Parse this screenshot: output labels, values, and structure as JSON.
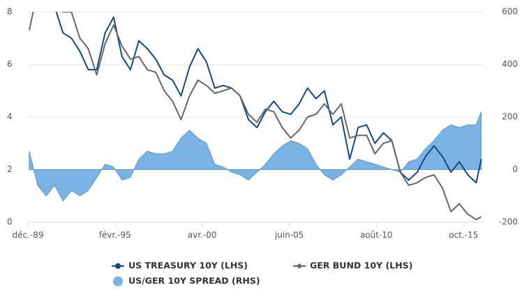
{
  "chart_data": {
    "type": "line",
    "x": [
      1990.0,
      1990.5,
      1991.0,
      1991.5,
      1992.0,
      1992.5,
      1993.0,
      1993.5,
      1994.0,
      1994.5,
      1995.0,
      1995.5,
      1996.0,
      1996.5,
      1997.0,
      1997.5,
      1998.0,
      1998.5,
      1999.0,
      1999.5,
      2000.0,
      2000.5,
      2001.0,
      2001.5,
      2002.0,
      2002.5,
      2003.0,
      2003.5,
      2004.0,
      2004.5,
      2005.0,
      2005.5,
      2006.0,
      2006.5,
      2007.0,
      2007.5,
      2008.0,
      2008.5,
      2009.0,
      2009.5,
      2010.0,
      2010.5,
      2011.0,
      2011.5,
      2012.0,
      2012.5,
      2013.0,
      2013.5,
      2014.0,
      2014.5,
      2015.0,
      2015.5,
      2016.0,
      2016.5,
      2016.8
    ],
    "series": [
      {
        "name": "US TREASURY 10Y (LHS)",
        "color": "#0d4a87",
        "axis": "y",
        "values": [
          8.2,
          8.5,
          8.1,
          8.2,
          7.2,
          7.0,
          6.5,
          5.8,
          5.8,
          7.2,
          7.8,
          6.3,
          5.8,
          6.9,
          6.6,
          6.2,
          5.6,
          5.4,
          4.8,
          5.9,
          6.6,
          6.1,
          5.1,
          5.2,
          5.1,
          4.8,
          3.9,
          3.6,
          4.2,
          4.6,
          4.2,
          4.1,
          4.5,
          5.1,
          4.7,
          5.0,
          3.7,
          4.0,
          2.4,
          3.6,
          3.7,
          3.0,
          3.4,
          3.1,
          1.9,
          1.6,
          1.9,
          2.5,
          2.9,
          2.5,
          1.9,
          2.3,
          1.8,
          1.5,
          2.4
        ]
      },
      {
        "name": "GER BUND 10Y (LHS)",
        "color": "#666666",
        "axis": "y",
        "values": [
          7.3,
          8.8,
          8.8,
          8.5,
          8.0,
          8.0,
          7.0,
          6.6,
          5.6,
          6.8,
          7.5,
          6.7,
          6.2,
          6.3,
          5.8,
          5.7,
          5.0,
          4.6,
          3.9,
          4.8,
          5.4,
          5.2,
          4.9,
          5.0,
          5.1,
          4.8,
          4.1,
          3.8,
          4.3,
          4.2,
          3.6,
          3.2,
          3.5,
          4.0,
          4.1,
          4.5,
          4.1,
          4.5,
          3.2,
          3.3,
          3.3,
          2.6,
          3.0,
          3.1,
          1.9,
          1.4,
          1.5,
          1.7,
          1.8,
          1.3,
          0.4,
          0.7,
          0.3,
          0.1,
          0.2
        ]
      },
      {
        "name": "US/GER 10Y SPREAD (RHS)",
        "color": "#7ab3e3",
        "axis": "y2",
        "values": [
          70,
          -60,
          -100,
          -60,
          -120,
          -80,
          -100,
          -80,
          -30,
          20,
          10,
          -40,
          -30,
          40,
          70,
          60,
          60,
          70,
          120,
          150,
          120,
          100,
          20,
          10,
          -10,
          -20,
          -40,
          -10,
          20,
          60,
          90,
          110,
          100,
          80,
          20,
          -20,
          -40,
          -20,
          10,
          40,
          30,
          20,
          10,
          0,
          -10,
          30,
          40,
          80,
          110,
          150,
          170,
          160,
          170,
          170,
          220
        ]
      }
    ],
    "xlim": [
      1989.92,
      2016.9
    ],
    "xticks": [
      {
        "value": 1989.92,
        "label": "déc.-89"
      },
      {
        "value": 1995.08,
        "label": "févr.-95"
      },
      {
        "value": 2000.25,
        "label": "avr.-00"
      },
      {
        "value": 2005.42,
        "label": "juin-05"
      },
      {
        "value": 2010.58,
        "label": "août-10"
      },
      {
        "value": 2015.75,
        "label": "oct.-15"
      }
    ],
    "ylim": [
      0,
      8
    ],
    "yticks": [
      0,
      2,
      4,
      6,
      8
    ],
    "y2lim": [
      -200,
      600
    ],
    "y2ticks": [
      -200,
      0,
      200,
      400,
      600
    ],
    "grid": true
  }
}
